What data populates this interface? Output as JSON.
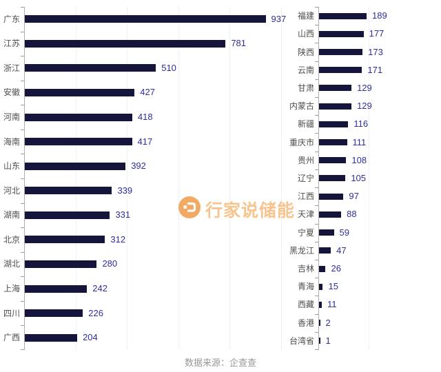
{
  "watermark": {
    "text": "行家说储能"
  },
  "source_note": "数据来源：企查查",
  "colors": {
    "bar": "#15153c",
    "value_label": "#2d2d9e",
    "category_label": "#4d4d4d",
    "axis": "#adadad",
    "tick": "#9a9a9a",
    "gridline": "#eff0f6",
    "watermark_icon": "#f2a963",
    "watermark_text": "#f7c48e",
    "source_text": "#979797"
  },
  "chart_data": {
    "type": "bar",
    "orientation": "horizontal",
    "title": "",
    "xlabel": "",
    "ylabel": "",
    "grid": true,
    "legend": null,
    "panels": [
      {
        "name": "left",
        "categories": [
          "广东",
          "江苏",
          "浙江",
          "安徽",
          "河南",
          "海南",
          "山东",
          "河北",
          "湖南",
          "北京",
          "湖北",
          "上海",
          "四川",
          "广西"
        ],
        "values": [
          937,
          781,
          510,
          427,
          418,
          417,
          392,
          339,
          331,
          312,
          280,
          242,
          226,
          204
        ],
        "xlim": [
          0,
          1000
        ],
        "gridlines": [
          200,
          400,
          600,
          800,
          1000
        ]
      },
      {
        "name": "right",
        "categories": [
          "福建",
          "山西",
          "陕西",
          "云南",
          "甘肃",
          "内蒙古",
          "新疆",
          "重庆市",
          "贵州",
          "辽宁",
          "江西",
          "天津",
          "宁夏",
          "黑龙江",
          "吉林",
          "青海",
          "西藏",
          "香港",
          "台湾省"
        ],
        "values": [
          189,
          177,
          173,
          171,
          129,
          129,
          116,
          111,
          108,
          105,
          97,
          88,
          59,
          47,
          26,
          15,
          11,
          2,
          1
        ],
        "xlim": [
          0,
          200
        ],
        "gridlines": [
          200
        ]
      }
    ]
  }
}
